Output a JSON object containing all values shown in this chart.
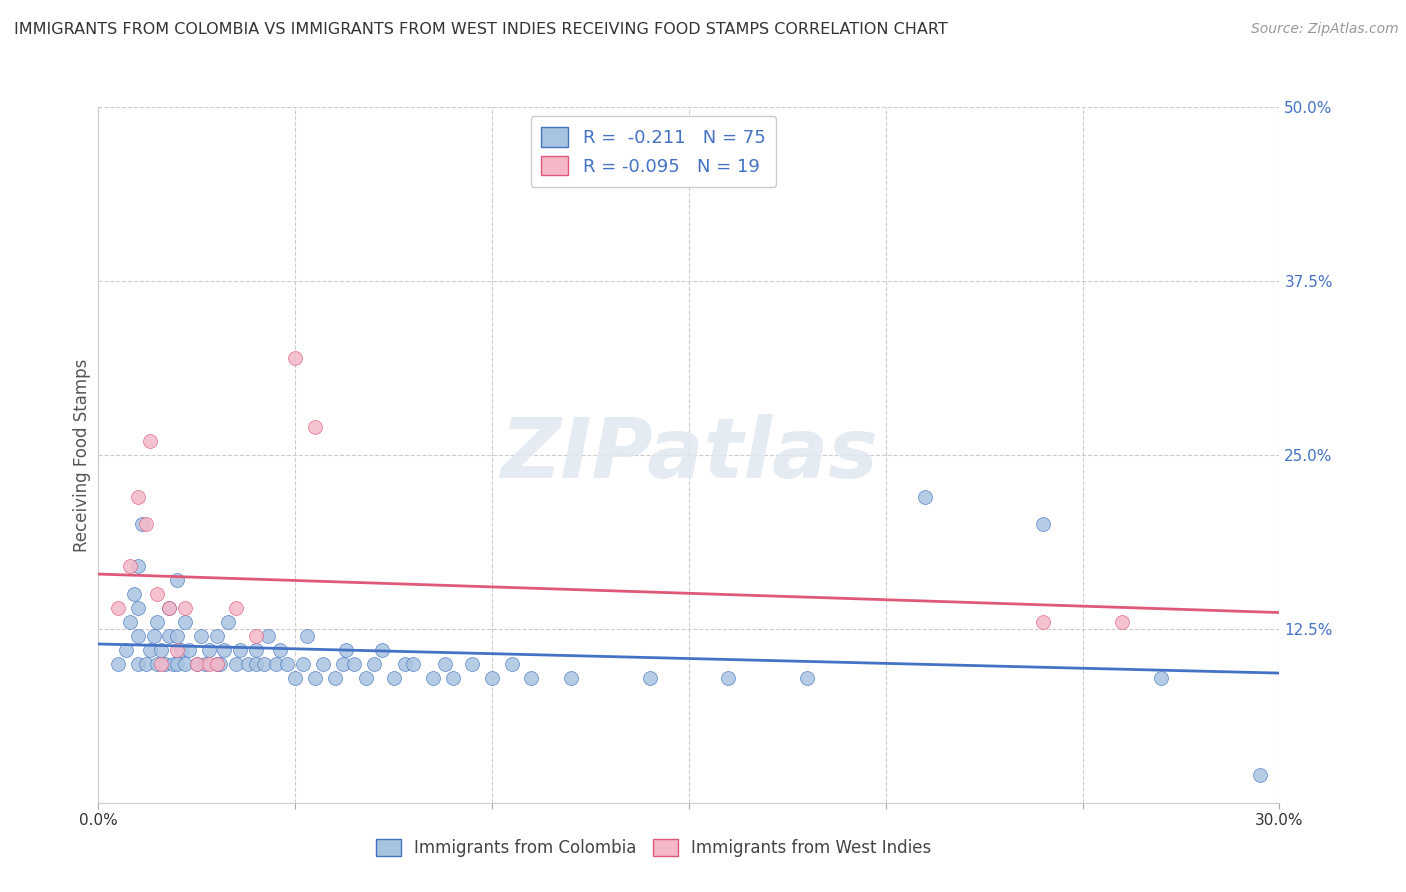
{
  "title": "IMMIGRANTS FROM COLOMBIA VS IMMIGRANTS FROM WEST INDIES RECEIVING FOOD STAMPS CORRELATION CHART",
  "source": "Source: ZipAtlas.com",
  "ylabel": "Receiving Food Stamps",
  "watermark": "ZIPatlas",
  "xlim": [
    0.0,
    0.3
  ],
  "ylim": [
    0.0,
    0.5
  ],
  "xticks": [
    0.0,
    0.05,
    0.1,
    0.15,
    0.2,
    0.25,
    0.3
  ],
  "yticks": [
    0.0,
    0.125,
    0.25,
    0.375,
    0.5
  ],
  "right_yticklabels": [
    "",
    "12.5%",
    "25.0%",
    "37.5%",
    "50.0%"
  ],
  "bottom_xticklabels_show": {
    "0.0": "0.0%",
    "0.30": "30.0%"
  },
  "colombia_R": -0.211,
  "colombia_N": 75,
  "westindies_R": -0.095,
  "westindies_N": 19,
  "colombia_color": "#a8c4e0",
  "colombia_edge_color": "#4472c4",
  "westindies_color": "#f4b8c8",
  "westindies_edge_color": "#e05878",
  "grid_color": "#cccccc",
  "title_color": "#333333",
  "ylabel_color": "#555555",
  "right_tick_color": "#4472c4",
  "bottom_tick_color": "#333333",
  "legend_color": "#4472c4",
  "colombia_line_color": "#4472c4",
  "westindies_line_color": "#e05878",
  "colombia_scatter_x": [
    0.005,
    0.007,
    0.008,
    0.009,
    0.01,
    0.01,
    0.01,
    0.01,
    0.011,
    0.012,
    0.013,
    0.014,
    0.015,
    0.015,
    0.016,
    0.017,
    0.018,
    0.018,
    0.019,
    0.02,
    0.02,
    0.02,
    0.021,
    0.022,
    0.022,
    0.023,
    0.025,
    0.026,
    0.027,
    0.028,
    0.03,
    0.03,
    0.031,
    0.032,
    0.033,
    0.035,
    0.036,
    0.038,
    0.04,
    0.04,
    0.042,
    0.043,
    0.045,
    0.046,
    0.048,
    0.05,
    0.052,
    0.053,
    0.055,
    0.057,
    0.06,
    0.062,
    0.063,
    0.065,
    0.068,
    0.07,
    0.072,
    0.075,
    0.078,
    0.08,
    0.085,
    0.088,
    0.09,
    0.095,
    0.1,
    0.105,
    0.11,
    0.12,
    0.14,
    0.16,
    0.18,
    0.21,
    0.24,
    0.27,
    0.295
  ],
  "colombia_scatter_y": [
    0.1,
    0.11,
    0.13,
    0.15,
    0.1,
    0.12,
    0.14,
    0.17,
    0.2,
    0.1,
    0.11,
    0.12,
    0.1,
    0.13,
    0.11,
    0.1,
    0.12,
    0.14,
    0.1,
    0.1,
    0.12,
    0.16,
    0.11,
    0.1,
    0.13,
    0.11,
    0.1,
    0.12,
    0.1,
    0.11,
    0.1,
    0.12,
    0.1,
    0.11,
    0.13,
    0.1,
    0.11,
    0.1,
    0.1,
    0.11,
    0.1,
    0.12,
    0.1,
    0.11,
    0.1,
    0.09,
    0.1,
    0.12,
    0.09,
    0.1,
    0.09,
    0.1,
    0.11,
    0.1,
    0.09,
    0.1,
    0.11,
    0.09,
    0.1,
    0.1,
    0.09,
    0.1,
    0.09,
    0.1,
    0.09,
    0.1,
    0.09,
    0.09,
    0.09,
    0.09,
    0.09,
    0.22,
    0.2,
    0.09,
    0.02
  ],
  "westindies_scatter_x": [
    0.005,
    0.008,
    0.01,
    0.012,
    0.013,
    0.015,
    0.016,
    0.018,
    0.02,
    0.022,
    0.025,
    0.028,
    0.03,
    0.035,
    0.04,
    0.05,
    0.055,
    0.24,
    0.26
  ],
  "westindies_scatter_y": [
    0.14,
    0.17,
    0.22,
    0.2,
    0.26,
    0.15,
    0.1,
    0.14,
    0.11,
    0.14,
    0.1,
    0.1,
    0.1,
    0.14,
    0.12,
    0.32,
    0.27,
    0.13,
    0.13
  ]
}
